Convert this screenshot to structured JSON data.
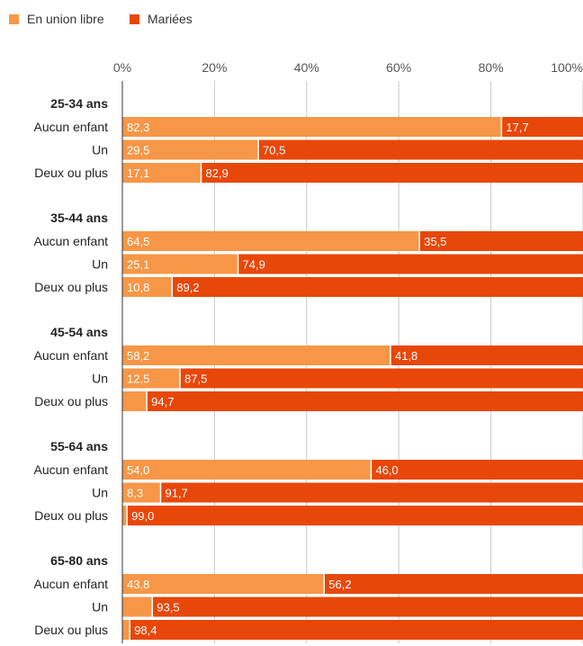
{
  "chart_data": {
    "type": "bar",
    "orientation": "horizontal",
    "stacked": true,
    "legend": {
      "placement": "top-left",
      "entries": [
        {
          "name": "En union libre",
          "color": "#f79646"
        },
        {
          "name": "Mariées",
          "color": "#e8470a"
        }
      ]
    },
    "xaxis": {
      "range": [
        0,
        100
      ],
      "ticks": [
        0,
        20,
        40,
        60,
        80,
        100
      ],
      "tick_labels": [
        "0%",
        "20%",
        "40%",
        "60%",
        "80%",
        "100%"
      ],
      "grid": true
    },
    "groups": [
      {
        "label": "25-34 ans",
        "rows": [
          {
            "label": "Aucun enfant",
            "values": [
              82.3,
              17.7
            ],
            "value_labels": [
              "82,3",
              "17,7"
            ]
          },
          {
            "label": "Un",
            "values": [
              29.5,
              70.5
            ],
            "value_labels": [
              "29,5",
              "70,5"
            ]
          },
          {
            "label": "Deux ou plus",
            "values": [
              17.1,
              82.9
            ],
            "value_labels": [
              "17,1",
              "82,9"
            ]
          }
        ]
      },
      {
        "label": "35-44 ans",
        "rows": [
          {
            "label": "Aucun enfant",
            "values": [
              64.5,
              35.5
            ],
            "value_labels": [
              "64,5",
              "35,5"
            ]
          },
          {
            "label": "Un",
            "values": [
              25.1,
              74.9
            ],
            "value_labels": [
              "25,1",
              "74,9"
            ]
          },
          {
            "label": "Deux ou plus",
            "values": [
              10.8,
              89.2
            ],
            "value_labels": [
              "10,8",
              "89,2"
            ]
          }
        ]
      },
      {
        "label": "45-54 ans",
        "rows": [
          {
            "label": "Aucun enfant",
            "values": [
              58.2,
              41.8
            ],
            "value_labels": [
              "58,2",
              "41,8"
            ]
          },
          {
            "label": "Un",
            "values": [
              12.5,
              87.5
            ],
            "value_labels": [
              "12,5",
              "87,5"
            ]
          },
          {
            "label": "Deux ou plus",
            "values": [
              5.3,
              94.7
            ],
            "value_labels": [
              "",
              "94,7"
            ]
          }
        ]
      },
      {
        "label": "55-64 ans",
        "rows": [
          {
            "label": "Aucun enfant",
            "values": [
              54.0,
              46.0
            ],
            "value_labels": [
              "54,0",
              "46,0"
            ]
          },
          {
            "label": "Un",
            "values": [
              8.3,
              91.7
            ],
            "value_labels": [
              "8,3",
              "91,7"
            ]
          },
          {
            "label": "Deux ou plus",
            "values": [
              1.0,
              99.0
            ],
            "value_labels": [
              "",
              "99,0"
            ]
          }
        ]
      },
      {
        "label": "65-80 ans",
        "rows": [
          {
            "label": "Aucun enfant",
            "values": [
              43.8,
              56.2
            ],
            "value_labels": [
              "43,8",
              "56,2"
            ]
          },
          {
            "label": "Un",
            "values": [
              6.5,
              93.5
            ],
            "value_labels": [
              "",
              "93,5"
            ]
          },
          {
            "label": "Deux ou plus",
            "values": [
              1.6,
              98.4
            ],
            "value_labels": [
              "",
              "98,4"
            ]
          }
        ]
      }
    ]
  }
}
